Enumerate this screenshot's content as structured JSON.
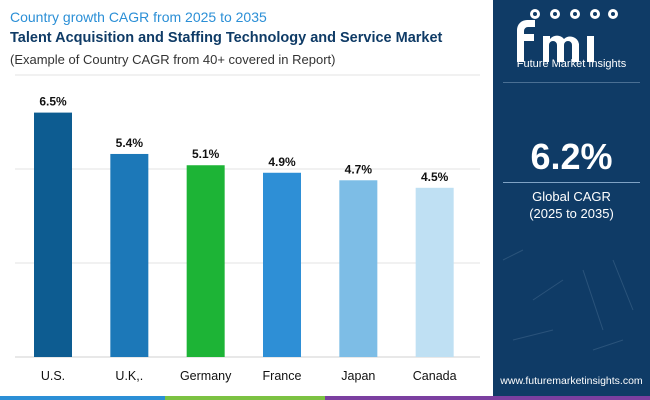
{
  "header": {
    "subtitle": "Country growth CAGR from 2025 to 2035",
    "title": "Talent Acquisition and Staffing Technology and Service Market",
    "note": "(Example of Country CAGR from 40+ covered in Report)"
  },
  "chart_data": {
    "type": "bar",
    "title": "Talent Acquisition and Staffing Technology and Service Market",
    "subtitle": "Country growth CAGR from 2025 to 2035",
    "categories": [
      "U.S.",
      "U.K,.",
      "Germany",
      "France",
      "Japan",
      "Canada"
    ],
    "values": [
      6.5,
      5.4,
      5.1,
      4.9,
      4.7,
      4.5
    ],
    "value_labels": [
      "6.5%",
      "5.4%",
      "5.1%",
      "4.9%",
      "4.7%",
      "4.5%"
    ],
    "bar_colors": [
      "#0d5c91",
      "#1c78b8",
      "#1db436",
      "#2e8fd6",
      "#7dbde6",
      "#bfe0f3"
    ],
    "xlabel": "",
    "ylabel": "",
    "ylim": [
      0,
      7.5
    ],
    "grid": true
  },
  "sidebar": {
    "brand_caption": "Future Market Insights",
    "global_value": "6.2%",
    "global_label": "Global CAGR",
    "global_period": "(2025 to 2035)",
    "website": "www.futuremarketinsights.com"
  },
  "colors": {
    "panel": "#0f3b66",
    "accent_blue": "#2b8fd6",
    "strip": [
      "#2b8fd6",
      "#7cc242",
      "#f39c12",
      "#7b3fa0"
    ]
  }
}
